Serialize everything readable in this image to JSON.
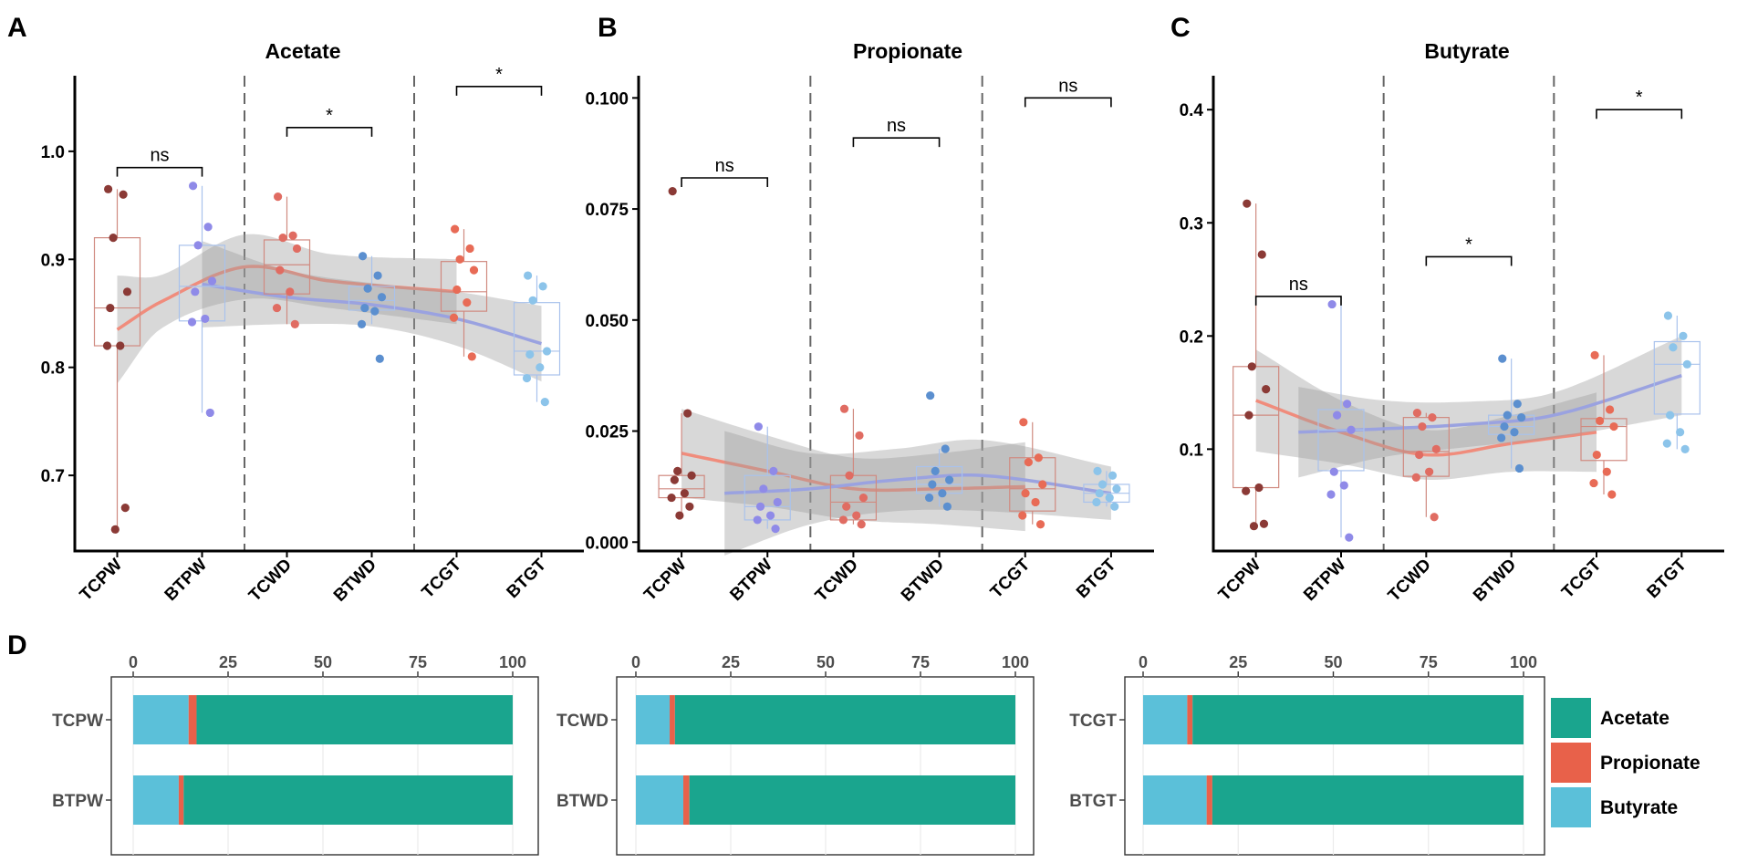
{
  "panel_letters": [
    "A",
    "B",
    "C",
    "D"
  ],
  "group_labels": [
    "TCPW",
    "BTPW",
    "TCWD",
    "BTWD",
    "TCGT",
    "BTGT"
  ],
  "colors": {
    "acetate": "#1aa58e",
    "propionate": "#e8614a",
    "butyrate": "#5bc0d9",
    "tc_points": [
      "#8b3a36",
      "#e06c62",
      "#e86b56"
    ],
    "bt_points": [
      "#8f8ae8",
      "#5b8fcf",
      "#8cc4ea"
    ],
    "tc_line": "#f08c7c",
    "bt_line": "#9aa2e0",
    "ribbon": "#9e9e9e"
  },
  "chart_data": [
    {
      "type": "scatter",
      "title": "Acetate",
      "panel": "A",
      "xlabel": "",
      "ylabel": "",
      "categories": [
        "TCPW",
        "BTPW",
        "TCWD",
        "BTWD",
        "TCGT",
        "BTGT"
      ],
      "ylim": [
        0.63,
        1.07
      ],
      "yticks": [
        0.7,
        0.8,
        0.9,
        1.0
      ],
      "ytick_labels": [
        "0.7",
        "0.8",
        "0.9",
        "1.0"
      ],
      "points": [
        [
          0.965,
          0.96,
          0.92,
          0.87,
          0.855,
          0.82,
          0.82,
          0.67,
          0.65
        ],
        [
          0.968,
          0.93,
          0.913,
          0.88,
          0.87,
          0.845,
          0.842,
          0.758
        ],
        [
          0.958,
          0.922,
          0.92,
          0.91,
          0.89,
          0.87,
          0.855,
          0.84
        ],
        [
          0.903,
          0.885,
          0.873,
          0.865,
          0.855,
          0.852,
          0.84,
          0.808
        ],
        [
          0.928,
          0.91,
          0.9,
          0.89,
          0.872,
          0.86,
          0.846,
          0.81
        ],
        [
          0.885,
          0.875,
          0.862,
          0.815,
          0.812,
          0.8,
          0.79,
          0.768
        ]
      ],
      "boxes": [
        [
          0.82,
          0.855,
          0.92
        ],
        [
          0.843,
          0.875,
          0.913
        ],
        [
          0.868,
          0.895,
          0.918
        ],
        [
          0.853,
          0.862,
          0.875
        ],
        [
          0.852,
          0.87,
          0.898
        ],
        [
          0.793,
          0.815,
          0.86
        ]
      ],
      "whiskers": [
        [
          0.65,
          0.965
        ],
        [
          0.758,
          0.968
        ],
        [
          0.84,
          0.958
        ],
        [
          0.84,
          0.903
        ],
        [
          0.81,
          0.928
        ],
        [
          0.768,
          0.885
        ]
      ],
      "fit_tc": {
        "x": [
          0.5,
          1.0,
          2.0,
          3.0,
          4.5
        ],
        "y": [
          0.835,
          0.86,
          0.893,
          0.88,
          0.87
        ]
      },
      "fit_bt": {
        "x": [
          1.5,
          2.5,
          3.5,
          4.5,
          5.5
        ],
        "y": [
          0.877,
          0.865,
          0.858,
          0.845,
          0.822
        ]
      },
      "band_tc": [
        0.05,
        0.025,
        0.03,
        0.025,
        0.03
      ],
      "band_bt": [
        0.04,
        0.025,
        0.02,
        0.025,
        0.035
      ],
      "significance": [
        {
          "from": 0,
          "to": 1,
          "label": "ns",
          "y": 0.985
        },
        {
          "from": 2,
          "to": 3,
          "label": "*",
          "y": 1.022
        },
        {
          "from": 4,
          "to": 5,
          "label": "*",
          "y": 1.06
        }
      ]
    },
    {
      "type": "scatter",
      "title": "Propionate",
      "panel": "B",
      "xlabel": "",
      "ylabel": "",
      "categories": [
        "TCPW",
        "BTPW",
        "TCWD",
        "BTWD",
        "TCGT",
        "BTGT"
      ],
      "ylim": [
        -0.002,
        0.105
      ],
      "yticks": [
        0.0,
        0.025,
        0.05,
        0.075,
        0.1
      ],
      "ytick_labels": [
        "0.000",
        "0.025",
        "0.050",
        "0.075",
        "0.100"
      ],
      "points": [
        [
          0.079,
          0.029,
          0.016,
          0.015,
          0.014,
          0.011,
          0.01,
          0.008,
          0.006
        ],
        [
          0.026,
          0.016,
          0.012,
          0.009,
          0.008,
          0.006,
          0.005,
          0.003
        ],
        [
          0.03,
          0.024,
          0.015,
          0.01,
          0.008,
          0.006,
          0.005,
          0.004
        ],
        [
          0.033,
          0.021,
          0.016,
          0.014,
          0.013,
          0.011,
          0.01,
          0.008
        ],
        [
          0.027,
          0.019,
          0.018,
          0.013,
          0.011,
          0.009,
          0.006,
          0.004
        ],
        [
          0.016,
          0.015,
          0.013,
          0.012,
          0.011,
          0.01,
          0.009,
          0.008
        ]
      ],
      "boxes": [
        [
          0.01,
          0.012,
          0.015
        ],
        [
          0.005,
          0.008,
          0.015
        ],
        [
          0.005,
          0.009,
          0.015
        ],
        [
          0.011,
          0.013,
          0.017
        ],
        [
          0.007,
          0.012,
          0.019
        ],
        [
          0.009,
          0.011,
          0.013
        ]
      ],
      "whiskers": [
        [
          0.006,
          0.029
        ],
        [
          0.003,
          0.026
        ],
        [
          0.004,
          0.03
        ],
        [
          0.008,
          0.021
        ],
        [
          0.004,
          0.027
        ],
        [
          0.008,
          0.016
        ]
      ],
      "fit_tc": {
        "x": [
          0.5,
          1.5,
          2.5,
          3.5,
          4.5
        ],
        "y": [
          0.02,
          0.016,
          0.012,
          0.012,
          0.0125
        ]
      },
      "fit_bt": {
        "x": [
          1.0,
          2.0,
          3.0,
          4.0,
          5.5
        ],
        "y": [
          0.011,
          0.012,
          0.014,
          0.015,
          0.011
        ]
      },
      "band_tc": [
        0.01,
        0.008,
        0.007,
        0.008,
        0.01
      ],
      "band_bt": [
        0.014,
        0.008,
        0.007,
        0.008,
        0.006
      ],
      "significance": [
        {
          "from": 0,
          "to": 1,
          "label": "ns",
          "y": 0.082
        },
        {
          "from": 2,
          "to": 3,
          "label": "ns",
          "y": 0.091
        },
        {
          "from": 4,
          "to": 5,
          "label": "ns",
          "y": 0.1
        }
      ]
    },
    {
      "type": "scatter",
      "title": "Butyrate",
      "panel": "C",
      "xlabel": "",
      "ylabel": "",
      "categories": [
        "TCPW",
        "BTPW",
        "TCWD",
        "BTWD",
        "TCGT",
        "BTGT"
      ],
      "ylim": [
        0.01,
        0.43
      ],
      "yticks": [
        0.1,
        0.2,
        0.3,
        0.4
      ],
      "ytick_labels": [
        "0.1",
        "0.2",
        "0.3",
        "0.4"
      ],
      "points": [
        [
          0.317,
          0.272,
          0.173,
          0.153,
          0.13,
          0.066,
          0.063,
          0.034,
          0.032
        ],
        [
          0.228,
          0.14,
          0.13,
          0.117,
          0.08,
          0.068,
          0.06,
          0.022
        ],
        [
          0.132,
          0.128,
          0.12,
          0.1,
          0.095,
          0.08,
          0.075,
          0.04
        ],
        [
          0.18,
          0.14,
          0.13,
          0.128,
          0.12,
          0.115,
          0.11,
          0.083
        ],
        [
          0.183,
          0.135,
          0.125,
          0.12,
          0.095,
          0.08,
          0.07,
          0.06
        ],
        [
          0.218,
          0.2,
          0.19,
          0.175,
          0.13,
          0.115,
          0.105,
          0.1
        ]
      ],
      "boxes": [
        [
          0.066,
          0.13,
          0.173
        ],
        [
          0.081,
          0.117,
          0.135
        ],
        [
          0.076,
          0.098,
          0.128
        ],
        [
          0.113,
          0.12,
          0.13
        ],
        [
          0.09,
          0.12,
          0.127
        ],
        [
          0.131,
          0.175,
          0.195
        ]
      ],
      "whiskers": [
        [
          0.032,
          0.317
        ],
        [
          0.022,
          0.228
        ],
        [
          0.04,
          0.132
        ],
        [
          0.083,
          0.18
        ],
        [
          0.06,
          0.183
        ],
        [
          0.1,
          0.218
        ]
      ],
      "fit_tc": {
        "x": [
          0.5,
          1.5,
          2.5,
          3.5,
          4.5
        ],
        "y": [
          0.143,
          0.115,
          0.095,
          0.105,
          0.115
        ]
      },
      "fit_bt": {
        "x": [
          1.0,
          2.0,
          3.0,
          4.0,
          5.5
        ],
        "y": [
          0.115,
          0.118,
          0.122,
          0.13,
          0.165
        ]
      },
      "band_tc": [
        0.045,
        0.028,
        0.022,
        0.025,
        0.035
      ],
      "band_bt": [
        0.04,
        0.025,
        0.02,
        0.02,
        0.035
      ],
      "significance": [
        {
          "from": 0,
          "to": 1,
          "label": "ns",
          "y": 0.235
        },
        {
          "from": 2,
          "to": 3,
          "label": "*",
          "y": 0.27
        },
        {
          "from": 4,
          "to": 5,
          "label": "*",
          "y": 0.4
        }
      ]
    },
    {
      "type": "bar",
      "orientation": "horizontal-stacked",
      "panel": "D",
      "title": "",
      "xlim": [
        0,
        100
      ],
      "xticks": [
        0,
        25,
        50,
        75,
        100
      ],
      "xtick_labels": [
        "0",
        "25",
        "50",
        "75",
        "100"
      ],
      "legend": [
        "Acetate",
        "Propionate",
        "Butyrate"
      ],
      "legend_position": "right",
      "facets": [
        {
          "categories": [
            "TCPW",
            "BTPW"
          ],
          "series": [
            {
              "name": "Butyrate",
              "values": [
                14.6,
                12.0
              ]
            },
            {
              "name": "Propionate",
              "values": [
                2.1,
                1.3
              ]
            },
            {
              "name": "Acetate",
              "values": [
                83.3,
                86.7
              ]
            }
          ]
        },
        {
          "categories": [
            "TCWD",
            "BTWD"
          ],
          "series": [
            {
              "name": "Butyrate",
              "values": [
                8.9,
                12.5
              ]
            },
            {
              "name": "Propionate",
              "values": [
                1.4,
                1.6
              ]
            },
            {
              "name": "Acetate",
              "values": [
                89.7,
                85.9
              ]
            }
          ]
        },
        {
          "categories": [
            "TCGT",
            "BTGT"
          ],
          "series": [
            {
              "name": "Butyrate",
              "values": [
                11.6,
                16.7
              ]
            },
            {
              "name": "Propionate",
              "values": [
                1.4,
                1.5
              ]
            },
            {
              "name": "Acetate",
              "values": [
                87.0,
                81.8
              ]
            }
          ]
        }
      ]
    }
  ]
}
